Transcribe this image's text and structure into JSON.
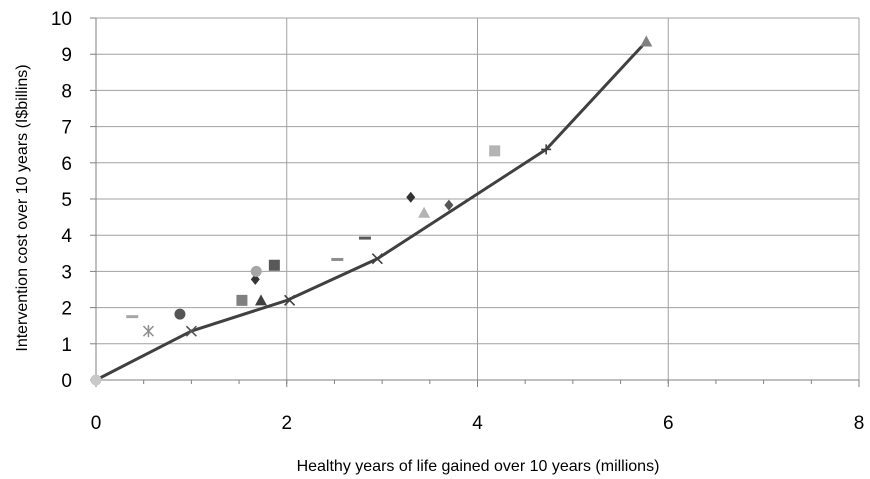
{
  "chart_data": {
    "type": "scatter",
    "title": "",
    "xlabel": "Healthy years of life gained over 10 years (millions)",
    "ylabel": "Intervention cost over 10 years (I$billins)",
    "xlim": [
      0,
      8
    ],
    "ylim": [
      0,
      10
    ],
    "x_ticks": [
      "0",
      "2",
      "4",
      "6",
      "8"
    ],
    "y_ticks": [
      "0",
      "1",
      "2",
      "3",
      "4",
      "5",
      "6",
      "7",
      "8",
      "9",
      "10"
    ],
    "grid": true,
    "legend": "none",
    "line": {
      "name": "",
      "color": "#404040",
      "points": [
        {
          "x": 0,
          "y": 0
        },
        {
          "x": 1,
          "y": 1.35
        },
        {
          "x": 2,
          "y": 2.2
        },
        {
          "x": 2.95,
          "y": 3.35
        },
        {
          "x": 4.72,
          "y": 6.37
        },
        {
          "x": 5.77,
          "y": 9.35
        }
      ]
    },
    "points": [
      {
        "x": 0.0,
        "y": 0.0,
        "marker": "circle",
        "color": "#c8c8c8"
      },
      {
        "x": 0.38,
        "y": 1.75,
        "marker": "dash",
        "color": "#a6a6a6"
      },
      {
        "x": 0.55,
        "y": 1.35,
        "marker": "star",
        "color": "#8c8c8c"
      },
      {
        "x": 0.88,
        "y": 1.82,
        "marker": "circle",
        "color": "#555555"
      },
      {
        "x": 1.0,
        "y": 1.35,
        "marker": "x",
        "color": "#555555"
      },
      {
        "x": 1.53,
        "y": 2.2,
        "marker": "square",
        "color": "#808080"
      },
      {
        "x": 1.67,
        "y": 2.78,
        "marker": "diamond",
        "color": "#333333"
      },
      {
        "x": 1.68,
        "y": 3.0,
        "marker": "circle",
        "color": "#a6a6a6"
      },
      {
        "x": 1.73,
        "y": 2.2,
        "marker": "triangle",
        "color": "#404040"
      },
      {
        "x": 1.87,
        "y": 3.17,
        "marker": "square",
        "color": "#595959"
      },
      {
        "x": 2.03,
        "y": 2.2,
        "marker": "x",
        "color": "#404040"
      },
      {
        "x": 2.53,
        "y": 3.33,
        "marker": "dash",
        "color": "#8c8c8c"
      },
      {
        "x": 2.82,
        "y": 3.92,
        "marker": "dash",
        "color": "#595959"
      },
      {
        "x": 2.95,
        "y": 3.35,
        "marker": "x",
        "color": "#404040"
      },
      {
        "x": 3.3,
        "y": 5.05,
        "marker": "diamond",
        "color": "#333333"
      },
      {
        "x": 3.44,
        "y": 4.62,
        "marker": "triangle",
        "color": "#b3b3b3"
      },
      {
        "x": 3.7,
        "y": 4.83,
        "marker": "diamond",
        "color": "#555555"
      },
      {
        "x": 4.18,
        "y": 6.33,
        "marker": "square",
        "color": "#b3b3b3"
      },
      {
        "x": 4.72,
        "y": 6.37,
        "marker": "plus",
        "color": "#404040"
      },
      {
        "x": 5.77,
        "y": 9.35,
        "marker": "triangle",
        "color": "#808080"
      }
    ]
  }
}
